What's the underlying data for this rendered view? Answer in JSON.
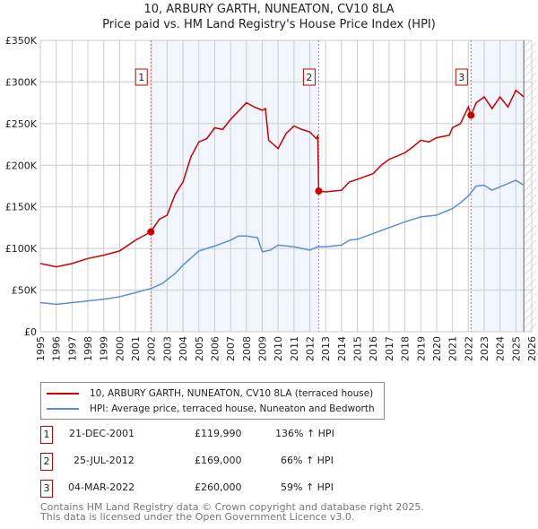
{
  "title": "10, ARBURY GARTH, NUNEATON, CV10 8LA",
  "subtitle": "Price paid vs. HM Land Registry's House Price Index (HPI)",
  "chart_data": {
    "type": "line",
    "title": "10, ARBURY GARTH, NUNEATON, CV10 8LA - Price paid vs. HM Land Registry's House Price Index (HPI)",
    "xlim": [
      1995,
      2026
    ],
    "ylim": [
      0,
      350000
    ],
    "x_ticks": [
      "1995",
      "1996",
      "1997",
      "1998",
      "1999",
      "2000",
      "2001",
      "2002",
      "2003",
      "2004",
      "2005",
      "2006",
      "2007",
      "2008",
      "2009",
      "2010",
      "2011",
      "2012",
      "2013",
      "2014",
      "2015",
      "2016",
      "2017",
      "2018",
      "2019",
      "2020",
      "2021",
      "2022",
      "2023",
      "2024",
      "2025",
      "2026"
    ],
    "y_ticks": [
      {
        "v": 0,
        "label": "£0"
      },
      {
        "v": 50000,
        "label": "£50K"
      },
      {
        "v": 100000,
        "label": "£100K"
      },
      {
        "v": 150000,
        "label": "£150K"
      },
      {
        "v": 200000,
        "label": "£200K"
      },
      {
        "v": 250000,
        "label": "£250K"
      },
      {
        "v": 300000,
        "label": "£300K"
      },
      {
        "v": 350000,
        "label": "£350K"
      }
    ],
    "grid": true,
    "series": [
      {
        "name": "10, ARBURY GARTH, NUNEATON, CV10 8LA (terraced house)",
        "color": "#cc0000",
        "x": [
          1995,
          1996,
          1997,
          1998,
          1999,
          2000,
          2001,
          2001.97,
          2002.5,
          2003,
          2003.5,
          2004,
          2004.5,
          2005,
          2005.5,
          2006,
          2006.5,
          2007,
          2007.5,
          2008,
          2008.5,
          2009,
          2009.2,
          2009.4,
          2010,
          2010.5,
          2011,
          2011.5,
          2012,
          2012.4,
          2012.5,
          2012.56,
          2013,
          2014,
          2014.5,
          2015,
          2016,
          2016.5,
          2017,
          2018,
          2018.5,
          2019,
          2019.5,
          2020,
          2020.8,
          2021,
          2021.5,
          2022,
          2022.17,
          2022.5,
          2023,
          2023.5,
          2024,
          2024.5,
          2025,
          2025.5
        ],
        "y": [
          82000,
          78000,
          82000,
          88000,
          92000,
          97000,
          110000,
          119990,
          135000,
          140000,
          165000,
          180000,
          210000,
          228000,
          232000,
          245000,
          243000,
          255000,
          265000,
          275000,
          270000,
          266000,
          268000,
          230000,
          220000,
          238000,
          247000,
          243000,
          240000,
          232000,
          235000,
          169000,
          168000,
          170000,
          180000,
          183000,
          190000,
          200000,
          207000,
          215000,
          222000,
          230000,
          228000,
          233000,
          236000,
          245000,
          250000,
          270000,
          260000,
          275000,
          282000,
          268000,
          282000,
          270000,
          290000,
          282000
        ]
      },
      {
        "name": "HPI: Average price, terraced house, Nuneaton and Bedworth",
        "color": "#5b8fd6",
        "x": [
          1995,
          1996,
          1997,
          1998,
          1999,
          2000,
          2001,
          2002,
          2002.7,
          2003.5,
          2004,
          2005,
          2005.5,
          2006,
          2007,
          2007.5,
          2008,
          2008.7,
          2009,
          2009.5,
          2010,
          2011,
          2011.5,
          2012,
          2012.5,
          2013,
          2014,
          2014.5,
          2015,
          2016,
          2017,
          2018,
          2019,
          2020,
          2021,
          2021.5,
          2022,
          2022.5,
          2023,
          2023.5,
          2024,
          2024.5,
          2025,
          2025.5
        ],
        "y": [
          35000,
          33000,
          35000,
          37000,
          39000,
          42000,
          47000,
          52000,
          58000,
          70000,
          80000,
          97000,
          100000,
          103000,
          110000,
          115000,
          115000,
          113000,
          96000,
          98000,
          104000,
          102000,
          100000,
          98000,
          102000,
          102000,
          104000,
          110000,
          111000,
          118000,
          125000,
          132000,
          138000,
          140000,
          148000,
          155000,
          163000,
          175000,
          176000,
          170000,
          174000,
          178000,
          182000,
          176000
        ]
      }
    ],
    "sales": [
      {
        "label": "1",
        "x": 2001.97,
        "y": 119990
      },
      {
        "label": "2",
        "x": 2012.56,
        "y": 169000
      },
      {
        "label": "3",
        "x": 2022.17,
        "y": 260000
      }
    ],
    "shaded_ranges": [
      [
        2001.97,
        2012.56
      ],
      [
        2022.17,
        2025.5
      ]
    ],
    "hatched_from": 2025.5,
    "legend_position": "below"
  },
  "legend": {
    "items": [
      {
        "label": "10, ARBURY GARTH, NUNEATON, CV10 8LA (terraced house)",
        "color": "#cc0000"
      },
      {
        "label": "HPI: Average price, terraced house, Nuneaton and Bedworth",
        "color": "#5b8fd6"
      }
    ]
  },
  "transactions": [
    {
      "num": "1",
      "date": "21-DEC-2001",
      "price": "£119,990",
      "hpi": "136% ↑ HPI"
    },
    {
      "num": "2",
      "date": "25-JUL-2012",
      "price": "£169,000",
      "hpi": "66% ↑ HPI"
    },
    {
      "num": "3",
      "date": "04-MAR-2022",
      "price": "£260,000",
      "hpi": "59% ↑ HPI"
    }
  ],
  "footer": {
    "line1": "Contains HM Land Registry data © Crown copyright and database right 2025.",
    "line2": "This data is licensed under the Open Government Licence v3.0."
  }
}
